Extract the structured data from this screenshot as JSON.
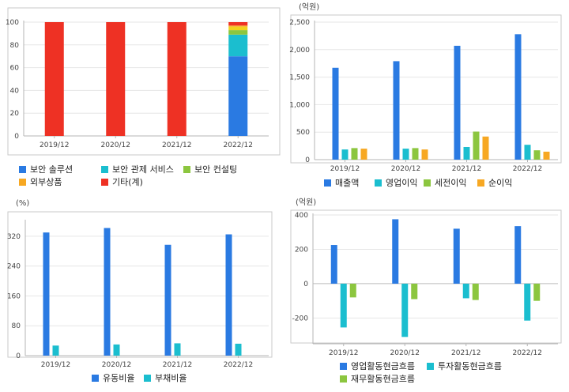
{
  "colors": {
    "blue": "#2a7ae2",
    "cyan": "#1bbecf",
    "green": "#8cc63f",
    "orange": "#f7a823",
    "red": "#ee3124",
    "yellow": "#f2d21c"
  },
  "chart_data": [
    {
      "type": "bar",
      "stacked": true,
      "title": "",
      "unit_label": "",
      "categories": [
        "2019/12",
        "2020/12",
        "2021/12",
        "2022/12"
      ],
      "ylim": [
        0,
        100
      ],
      "yticks": [
        0,
        20,
        40,
        60,
        80,
        100
      ],
      "grid": true,
      "legend_position": "bottom",
      "series": [
        {
          "name": "보안 솔루션",
          "color": "blue",
          "values": [
            0,
            0,
            0,
            70
          ]
        },
        {
          "name": "보안 관제 서비스",
          "color": "cyan",
          "values": [
            0,
            0,
            0,
            19
          ]
        },
        {
          "name": "보안 컨설팅",
          "color": "green",
          "values": [
            0,
            0,
            0,
            4
          ]
        },
        {
          "name": "",
          "color": "yellow",
          "values": [
            0,
            0,
            0,
            3
          ]
        },
        {
          "name": "외부상품",
          "color": "orange",
          "values": [
            0,
            0,
            0,
            1
          ]
        },
        {
          "name": "기타(계)",
          "color": "red",
          "values": [
            100,
            100,
            100,
            3
          ]
        }
      ]
    },
    {
      "type": "bar",
      "title": "",
      "unit_label": "(억원)",
      "categories": [
        "2019/12",
        "2020/12",
        "2021/12",
        "2022/12"
      ],
      "ylim": [
        0,
        2500
      ],
      "yticks": [
        0,
        500,
        1000,
        1500,
        2000,
        2500
      ],
      "ytick_labels": [
        "0",
        "500",
        "1,000",
        "1,500",
        "2,000",
        "2,500"
      ],
      "grid": true,
      "legend_position": "bottom",
      "series": [
        {
          "name": "매출액",
          "color": "blue",
          "values": [
            1670,
            1790,
            2070,
            2280
          ]
        },
        {
          "name": "영업이익",
          "color": "cyan",
          "values": [
            185,
            200,
            230,
            270
          ]
        },
        {
          "name": "세전이익",
          "color": "green",
          "values": [
            210,
            210,
            510,
            170
          ]
        },
        {
          "name": "순이익",
          "color": "orange",
          "values": [
            200,
            185,
            420,
            145
          ]
        }
      ]
    },
    {
      "type": "bar",
      "title": "",
      "unit_label": "(%)",
      "categories": [
        "2019/12",
        "2020/12",
        "2021/12",
        "2022/12"
      ],
      "ylim": [
        0,
        360
      ],
      "yticks": [
        0,
        80,
        160,
        240,
        320
      ],
      "grid": true,
      "legend_position": "bottom",
      "series": [
        {
          "name": "유동비율",
          "color": "blue",
          "values": [
            330,
            342,
            297,
            325
          ]
        },
        {
          "name": "부채비율",
          "color": "cyan",
          "values": [
            27,
            30,
            33,
            32
          ]
        }
      ]
    },
    {
      "type": "bar",
      "title": "",
      "unit_label": "(억원)",
      "categories": [
        "2019/12",
        "2020/12",
        "2021/12",
        "2022/12"
      ],
      "ylim": [
        -350,
        400
      ],
      "yticks": [
        -200,
        0,
        200,
        400
      ],
      "grid": true,
      "legend_position": "bottom",
      "series": [
        {
          "name": "영업활동현금흐름",
          "color": "blue",
          "values": [
            225,
            375,
            320,
            335
          ]
        },
        {
          "name": "투자활동현금흐름",
          "color": "cyan",
          "values": [
            -255,
            -310,
            -85,
            -215
          ]
        },
        {
          "name": "재무활동현금흐름",
          "color": "green",
          "values": [
            -80,
            -90,
            -95,
            -100
          ]
        }
      ]
    }
  ]
}
